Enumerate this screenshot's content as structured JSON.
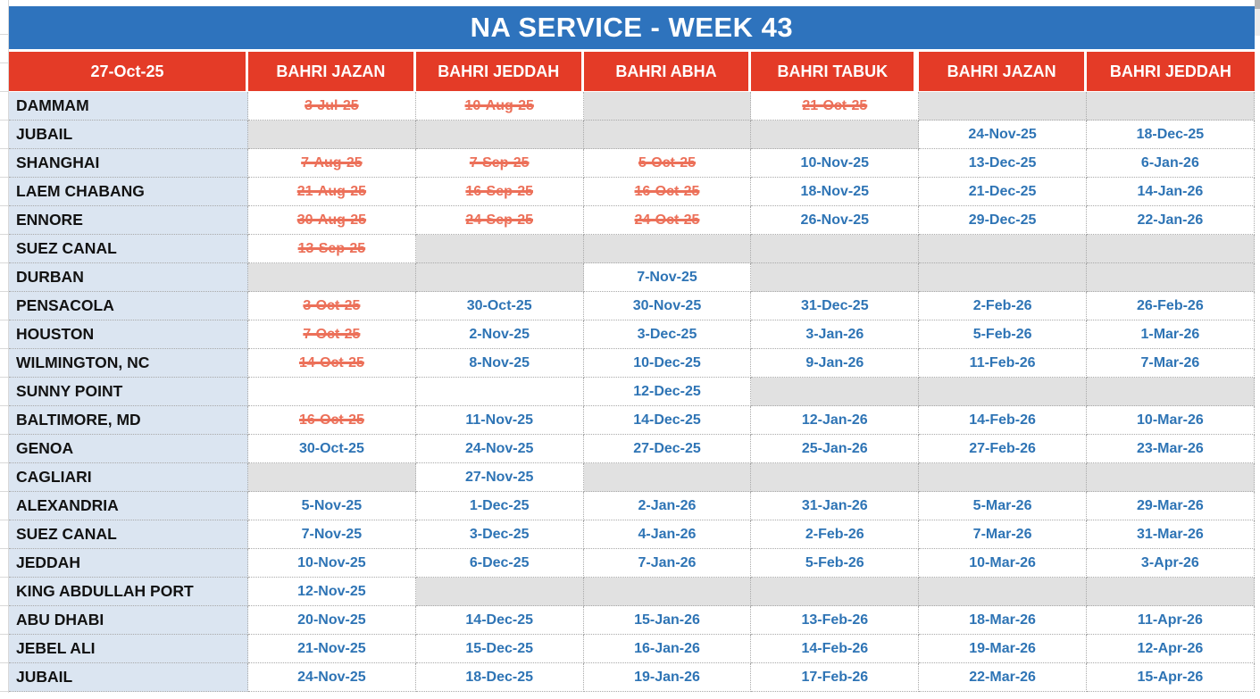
{
  "title": "NA SERVICE - WEEK 43",
  "colors": {
    "title_bg": "#2e73bd",
    "header_bg": "#e43b27",
    "header_text": "#ffffff",
    "port_bg": "#dbe5f1",
    "port_text": "#121212",
    "future_date": "#2e74b5",
    "past_date": "#ec7059",
    "blocked_bg": "#e1e1e1"
  },
  "table": {
    "date_header": "27-Oct-25",
    "vessels": [
      "BAHRI JAZAN",
      "BAHRI JEDDAH",
      "BAHRI ABHA",
      "BAHRI TABUK",
      "BAHRI JAZAN",
      "BAHRI JEDDAH"
    ],
    "rows": [
      {
        "port": "DAMMAM",
        "cells": [
          {
            "text": "3-Jul-25",
            "state": "past"
          },
          {
            "text": "10-Aug-25",
            "state": "past"
          },
          {
            "text": "",
            "state": "blocked"
          },
          {
            "text": "21-Oct-25",
            "state": "past"
          },
          {
            "text": "",
            "state": "blocked"
          },
          {
            "text": "",
            "state": "blocked"
          }
        ]
      },
      {
        "port": "JUBAIL",
        "cells": [
          {
            "text": "",
            "state": "blocked"
          },
          {
            "text": "",
            "state": "blocked"
          },
          {
            "text": "",
            "state": "blocked"
          },
          {
            "text": "",
            "state": "blocked"
          },
          {
            "text": "24-Nov-25",
            "state": "future"
          },
          {
            "text": "18-Dec-25",
            "state": "future"
          }
        ]
      },
      {
        "port": "SHANGHAI",
        "cells": [
          {
            "text": "7-Aug-25",
            "state": "past"
          },
          {
            "text": "7-Sep-25",
            "state": "past"
          },
          {
            "text": "5-Oct-25",
            "state": "past"
          },
          {
            "text": "10-Nov-25",
            "state": "future"
          },
          {
            "text": "13-Dec-25",
            "state": "future"
          },
          {
            "text": "6-Jan-26",
            "state": "future"
          }
        ]
      },
      {
        "port": "LAEM CHABANG",
        "cells": [
          {
            "text": "21-Aug-25",
            "state": "past"
          },
          {
            "text": "16-Sep-25",
            "state": "past"
          },
          {
            "text": "16-Oct-25",
            "state": "past"
          },
          {
            "text": "18-Nov-25",
            "state": "future"
          },
          {
            "text": "21-Dec-25",
            "state": "future"
          },
          {
            "text": "14-Jan-26",
            "state": "future"
          }
        ]
      },
      {
        "port": "ENNORE",
        "cells": [
          {
            "text": "30-Aug-25",
            "state": "past"
          },
          {
            "text": "24-Sep-25",
            "state": "past"
          },
          {
            "text": "24-Oct-25",
            "state": "past"
          },
          {
            "text": "26-Nov-25",
            "state": "future"
          },
          {
            "text": "29-Dec-25",
            "state": "future"
          },
          {
            "text": "22-Jan-26",
            "state": "future"
          }
        ]
      },
      {
        "port": "SUEZ CANAL",
        "cells": [
          {
            "text": "13-Sep-25",
            "state": "past"
          },
          {
            "text": "",
            "state": "blocked"
          },
          {
            "text": "",
            "state": "blocked"
          },
          {
            "text": "",
            "state": "blocked"
          },
          {
            "text": "",
            "state": "blocked"
          },
          {
            "text": "",
            "state": "blocked"
          }
        ]
      },
      {
        "port": "DURBAN",
        "cells": [
          {
            "text": "",
            "state": "blocked"
          },
          {
            "text": "",
            "state": "blocked"
          },
          {
            "text": "7-Nov-25",
            "state": "future"
          },
          {
            "text": "",
            "state": "blocked"
          },
          {
            "text": "",
            "state": "blocked"
          },
          {
            "text": "",
            "state": "blocked"
          }
        ]
      },
      {
        "port": "PENSACOLA",
        "cells": [
          {
            "text": "3-Oct-25",
            "state": "past"
          },
          {
            "text": "30-Oct-25",
            "state": "future"
          },
          {
            "text": "30-Nov-25",
            "state": "future"
          },
          {
            "text": "31-Dec-25",
            "state": "future"
          },
          {
            "text": "2-Feb-26",
            "state": "future"
          },
          {
            "text": "26-Feb-26",
            "state": "future"
          }
        ]
      },
      {
        "port": "HOUSTON",
        "cells": [
          {
            "text": "7-Oct-25",
            "state": "past"
          },
          {
            "text": "2-Nov-25",
            "state": "future"
          },
          {
            "text": "3-Dec-25",
            "state": "future"
          },
          {
            "text": "3-Jan-26",
            "state": "future"
          },
          {
            "text": "5-Feb-26",
            "state": "future"
          },
          {
            "text": "1-Mar-26",
            "state": "future"
          }
        ]
      },
      {
        "port": "WILMINGTON, NC",
        "cells": [
          {
            "text": "14-Oct-25",
            "state": "past"
          },
          {
            "text": "8-Nov-25",
            "state": "future"
          },
          {
            "text": "10-Dec-25",
            "state": "future"
          },
          {
            "text": "9-Jan-26",
            "state": "future"
          },
          {
            "text": "11-Feb-26",
            "state": "future"
          },
          {
            "text": "7-Mar-26",
            "state": "future"
          }
        ]
      },
      {
        "port": "SUNNY POINT",
        "cells": [
          {
            "text": "",
            "state": "empty"
          },
          {
            "text": "",
            "state": "empty"
          },
          {
            "text": "12-Dec-25",
            "state": "future"
          },
          {
            "text": "",
            "state": "blocked"
          },
          {
            "text": "",
            "state": "blocked"
          },
          {
            "text": "",
            "state": "blocked"
          }
        ]
      },
      {
        "port": "BALTIMORE, MD",
        "cells": [
          {
            "text": "16-Oct-25",
            "state": "past"
          },
          {
            "text": "11-Nov-25",
            "state": "future"
          },
          {
            "text": "14-Dec-25",
            "state": "future"
          },
          {
            "text": "12-Jan-26",
            "state": "future"
          },
          {
            "text": "14-Feb-26",
            "state": "future"
          },
          {
            "text": "10-Mar-26",
            "state": "future"
          }
        ]
      },
      {
        "port": "GENOA",
        "cells": [
          {
            "text": "30-Oct-25",
            "state": "future"
          },
          {
            "text": "24-Nov-25",
            "state": "future"
          },
          {
            "text": "27-Dec-25",
            "state": "future"
          },
          {
            "text": "25-Jan-26",
            "state": "future"
          },
          {
            "text": "27-Feb-26",
            "state": "future"
          },
          {
            "text": "23-Mar-26",
            "state": "future"
          }
        ]
      },
      {
        "port": "CAGLIARI",
        "cells": [
          {
            "text": "",
            "state": "blocked"
          },
          {
            "text": "27-Nov-25",
            "state": "future"
          },
          {
            "text": "",
            "state": "blocked"
          },
          {
            "text": "",
            "state": "blocked"
          },
          {
            "text": "",
            "state": "blocked"
          },
          {
            "text": "",
            "state": "blocked"
          }
        ]
      },
      {
        "port": "ALEXANDRIA",
        "cells": [
          {
            "text": "5-Nov-25",
            "state": "future"
          },
          {
            "text": "1-Dec-25",
            "state": "future"
          },
          {
            "text": "2-Jan-26",
            "state": "future"
          },
          {
            "text": "31-Jan-26",
            "state": "future"
          },
          {
            "text": "5-Mar-26",
            "state": "future"
          },
          {
            "text": "29-Mar-26",
            "state": "future"
          }
        ]
      },
      {
        "port": "SUEZ CANAL",
        "cells": [
          {
            "text": "7-Nov-25",
            "state": "future"
          },
          {
            "text": "3-Dec-25",
            "state": "future"
          },
          {
            "text": "4-Jan-26",
            "state": "future"
          },
          {
            "text": "2-Feb-26",
            "state": "future"
          },
          {
            "text": "7-Mar-26",
            "state": "future"
          },
          {
            "text": "31-Mar-26",
            "state": "future"
          }
        ]
      },
      {
        "port": "JEDDAH",
        "cells": [
          {
            "text": "10-Nov-25",
            "state": "future"
          },
          {
            "text": "6-Dec-25",
            "state": "future"
          },
          {
            "text": "7-Jan-26",
            "state": "future"
          },
          {
            "text": "5-Feb-26",
            "state": "future"
          },
          {
            "text": "10-Mar-26",
            "state": "future"
          },
          {
            "text": "3-Apr-26",
            "state": "future"
          }
        ]
      },
      {
        "port": "KING ABDULLAH PORT",
        "cells": [
          {
            "text": "12-Nov-25",
            "state": "future"
          },
          {
            "text": "",
            "state": "blocked"
          },
          {
            "text": "",
            "state": "blocked"
          },
          {
            "text": "",
            "state": "blocked"
          },
          {
            "text": "",
            "state": "blocked"
          },
          {
            "text": "",
            "state": "blocked"
          }
        ]
      },
      {
        "port": "ABU DHABI",
        "cells": [
          {
            "text": "20-Nov-25",
            "state": "future"
          },
          {
            "text": "14-Dec-25",
            "state": "future"
          },
          {
            "text": "15-Jan-26",
            "state": "future"
          },
          {
            "text": "13-Feb-26",
            "state": "future"
          },
          {
            "text": "18-Mar-26",
            "state": "future"
          },
          {
            "text": "11-Apr-26",
            "state": "future"
          }
        ]
      },
      {
        "port": "JEBEL ALI",
        "cells": [
          {
            "text": "21-Nov-25",
            "state": "future"
          },
          {
            "text": "15-Dec-25",
            "state": "future"
          },
          {
            "text": "16-Jan-26",
            "state": "future"
          },
          {
            "text": "14-Feb-26",
            "state": "future"
          },
          {
            "text": "19-Mar-26",
            "state": "future"
          },
          {
            "text": "12-Apr-26",
            "state": "future"
          }
        ]
      },
      {
        "port": "JUBAIL",
        "cells": [
          {
            "text": "24-Nov-25",
            "state": "future"
          },
          {
            "text": "18-Dec-25",
            "state": "future"
          },
          {
            "text": "19-Jan-26",
            "state": "future"
          },
          {
            "text": "17-Feb-26",
            "state": "future"
          },
          {
            "text": "22-Mar-26",
            "state": "future"
          },
          {
            "text": "15-Apr-26",
            "state": "future"
          }
        ]
      }
    ]
  }
}
